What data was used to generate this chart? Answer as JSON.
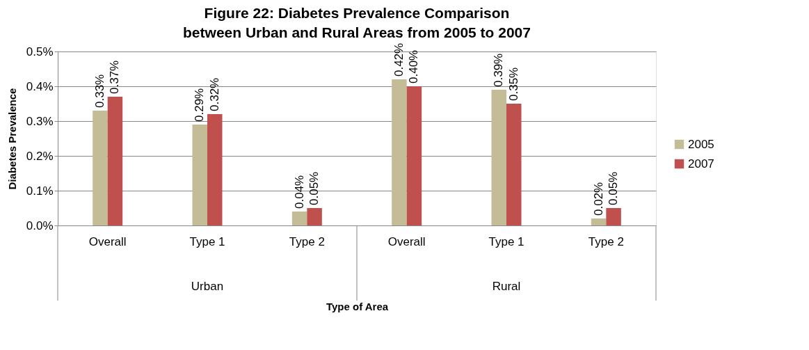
{
  "chart_data": {
    "type": "bar",
    "title": "Figure 22: Diabetes Prevalence Comparison between Urban and Rural Areas from 2005 to 2007",
    "xlabel": "Type of Area",
    "ylabel": "Diabetes Prevalence",
    "categories": [
      "Overall",
      "Type 1",
      "Type 2",
      "Overall",
      "Type 1",
      "Type 2"
    ],
    "annotations": [
      "Urban",
      "Rural"
    ],
    "series": [
      {
        "name": "2005",
        "color": "#c4bc96",
        "values": [
          0.33,
          0.29,
          0.04,
          0.42,
          0.39,
          0.02
        ],
        "value_labels": [
          "0.33%",
          "0.29%",
          "0.04%",
          "0.42%",
          "0.39%",
          "0.02%"
        ]
      },
      {
        "name": "2007",
        "color": "#c0504d",
        "values": [
          0.37,
          0.32,
          0.05,
          0.4,
          0.35,
          0.05
        ],
        "value_labels": [
          "0.37%",
          "0.32%",
          "0.05%",
          "0.40%",
          "0.35%",
          "0.05%"
        ]
      }
    ],
    "ylim": [
      0,
      0.5
    ],
    "yticks": [
      {
        "value": 0,
        "label": "0.0%"
      },
      {
        "value": 0.1,
        "label": "0.1%"
      },
      {
        "value": 0.2,
        "label": "0.2%"
      },
      {
        "value": 0.3,
        "label": "0.3%"
      },
      {
        "value": 0.4,
        "label": "0.4%"
      },
      {
        "value": 0.5,
        "label": "0.5%"
      }
    ],
    "grid": "y",
    "legend": "right"
  }
}
